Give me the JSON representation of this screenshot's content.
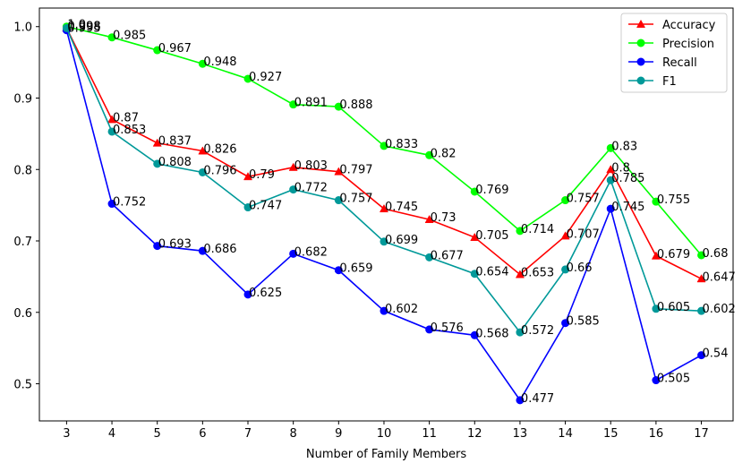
{
  "chart_data": {
    "type": "line",
    "xlabel": "Number of Family Members",
    "ylabel": "",
    "x": [
      3,
      4,
      5,
      6,
      7,
      8,
      9,
      10,
      11,
      12,
      13,
      14,
      15,
      16,
      17
    ],
    "x_ticks": [
      "3",
      "4",
      "5",
      "6",
      "7",
      "8",
      "9",
      "10",
      "11",
      "12",
      "13",
      "14",
      "15",
      "16",
      "17"
    ],
    "y_ticks": [
      "0.5",
      "0.6",
      "0.7",
      "0.8",
      "0.9",
      "1.0"
    ],
    "xlim": [
      2.4,
      17.7
    ],
    "ylim": [
      0.448,
      1.026
    ],
    "grid": false,
    "legend_position": "top-right",
    "series": [
      {
        "name": "Accuracy",
        "color": "#ff0000",
        "marker": "triangle",
        "values": [
          0.998,
          0.87,
          0.837,
          0.826,
          0.79,
          0.803,
          0.797,
          0.745,
          0.73,
          0.705,
          0.653,
          0.707,
          0.8,
          0.679,
          0.647
        ],
        "labels": [
          "0.998",
          "0.87",
          "0.837",
          "0.826",
          "0.79",
          "0.803",
          "0.797",
          "0.745",
          "0.73",
          "0.705",
          "0.653",
          "0.707",
          "0.8",
          "0.679",
          "0.647"
        ]
      },
      {
        "name": "Precision",
        "color": "#00ff00",
        "marker": "circle",
        "values": [
          1.0,
          0.985,
          0.967,
          0.948,
          0.927,
          0.891,
          0.888,
          0.833,
          0.82,
          0.769,
          0.714,
          0.757,
          0.83,
          0.755,
          0.68
        ],
        "labels": [
          "1.0",
          "0.985",
          "0.967",
          "0.948",
          "0.927",
          "0.891",
          "0.888",
          "0.833",
          "0.82",
          "0.769",
          "0.714",
          "0.757",
          "0.83",
          "0.755",
          "0.68"
        ]
      },
      {
        "name": "Recall",
        "color": "#0000ff",
        "marker": "circle",
        "values": [
          0.995,
          0.752,
          0.693,
          0.686,
          0.625,
          0.682,
          0.659,
          0.602,
          0.576,
          0.568,
          0.477,
          0.585,
          0.745,
          0.505,
          0.54
        ],
        "labels": [
          "0.995",
          "0.752",
          "0.693",
          "0.686",
          "0.625",
          "0.682",
          "0.659",
          "0.602",
          "0.576",
          "0.568",
          "0.477",
          "0.585",
          "0.745",
          "0.505",
          "0.54"
        ]
      },
      {
        "name": "F1",
        "color": "#009999",
        "marker": "circle",
        "values": [
          0.998,
          0.853,
          0.808,
          0.796,
          0.747,
          0.772,
          0.757,
          0.699,
          0.677,
          0.654,
          0.572,
          0.66,
          0.785,
          0.605,
          0.602
        ],
        "labels": [
          "0.998",
          "0.853",
          "0.808",
          "0.796",
          "0.747",
          "0.772",
          "0.757",
          "0.699",
          "0.677",
          "0.654",
          "0.572",
          "0.66",
          "0.785",
          "0.605",
          "0.602"
        ]
      }
    ]
  }
}
